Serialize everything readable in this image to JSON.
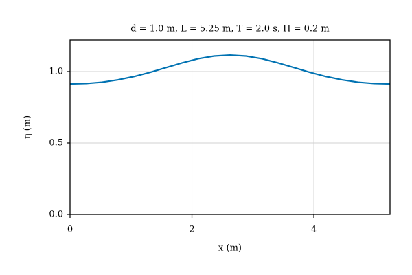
{
  "chart_data": {
    "type": "line",
    "title": "d = 1.0 m, L = 5.25 m, T = 2.0 s, H = 0.2 m",
    "xlabel": "x (m)",
    "ylabel": "η (m)",
    "x": [
      0,
      0.2625,
      0.525,
      0.7875,
      1.05,
      1.3125,
      1.575,
      1.8375,
      2.1,
      2.3625,
      2.625,
      2.8875,
      3.15,
      3.4125,
      3.675,
      3.9375,
      4.2,
      4.4625,
      4.725,
      4.9875,
      5.25
    ],
    "series": [
      {
        "name": "η",
        "color": "#0072b2",
        "values": [
          0.913,
          0.916,
          0.925,
          0.942,
          0.965,
          0.994,
          1.027,
          1.06,
          1.089,
          1.108,
          1.115,
          1.108,
          1.089,
          1.06,
          1.027,
          0.994,
          0.965,
          0.942,
          0.925,
          0.916,
          0.913
        ]
      }
    ],
    "xlim": [
      0,
      5.25
    ],
    "ylim": [
      0,
      1.221
    ],
    "xticks": [
      0,
      2,
      4
    ],
    "yticks": [
      {
        "value": 0,
        "label": "0.0"
      },
      {
        "value": 0.5,
        "label": "0.5"
      },
      {
        "value": 1,
        "label": "1.0"
      }
    ],
    "grid": true
  }
}
